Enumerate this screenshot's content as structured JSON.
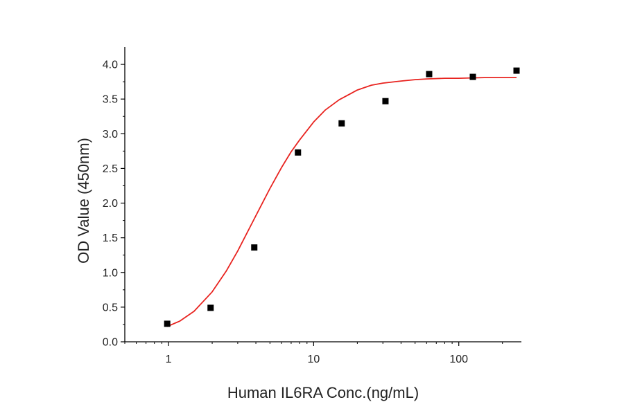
{
  "chart_data": {
    "type": "scatter",
    "title": "",
    "xlabel": "Human IL6RA Conc.(ng/mL)",
    "ylabel": "OD Value (450nm)",
    "xscale": "log",
    "xlim": [
      0.5,
      270
    ],
    "ylim": [
      0,
      4.25
    ],
    "xticks": [
      1,
      10,
      100
    ],
    "xtick_labels": [
      "1",
      "10",
      "100"
    ],
    "yticks": [
      0.0,
      0.5,
      1.0,
      1.5,
      2.0,
      2.5,
      3.0,
      3.5,
      4.0
    ],
    "ytick_labels": [
      "0.0",
      "0.5",
      "1.0",
      "1.5",
      "2.0",
      "2.5",
      "3.0",
      "3.5",
      "4.0"
    ],
    "grid": false,
    "legend": "none",
    "series": [
      {
        "kind": "points",
        "marker": "square",
        "color": "#000000",
        "x": [
          0.98,
          1.95,
          3.9,
          7.8,
          15.6,
          31.25,
          62.5,
          125,
          250
        ],
        "y": [
          0.26,
          0.49,
          1.36,
          2.73,
          3.15,
          3.47,
          3.86,
          3.82,
          3.91
        ]
      },
      {
        "kind": "fit-curve",
        "color": "#e8231f",
        "x": [
          0.98,
          1.2,
          1.5,
          2,
          2.5,
          3,
          4,
          5,
          6,
          7,
          8,
          10,
          12,
          15,
          20,
          25,
          30,
          40,
          50,
          60,
          80,
          100,
          150,
          200,
          250
        ],
        "y": [
          0.22,
          0.3,
          0.44,
          0.72,
          1.02,
          1.31,
          1.82,
          2.21,
          2.51,
          2.74,
          2.91,
          3.17,
          3.34,
          3.49,
          3.63,
          3.7,
          3.73,
          3.76,
          3.78,
          3.79,
          3.8,
          3.8,
          3.81,
          3.81,
          3.81
        ]
      }
    ]
  }
}
